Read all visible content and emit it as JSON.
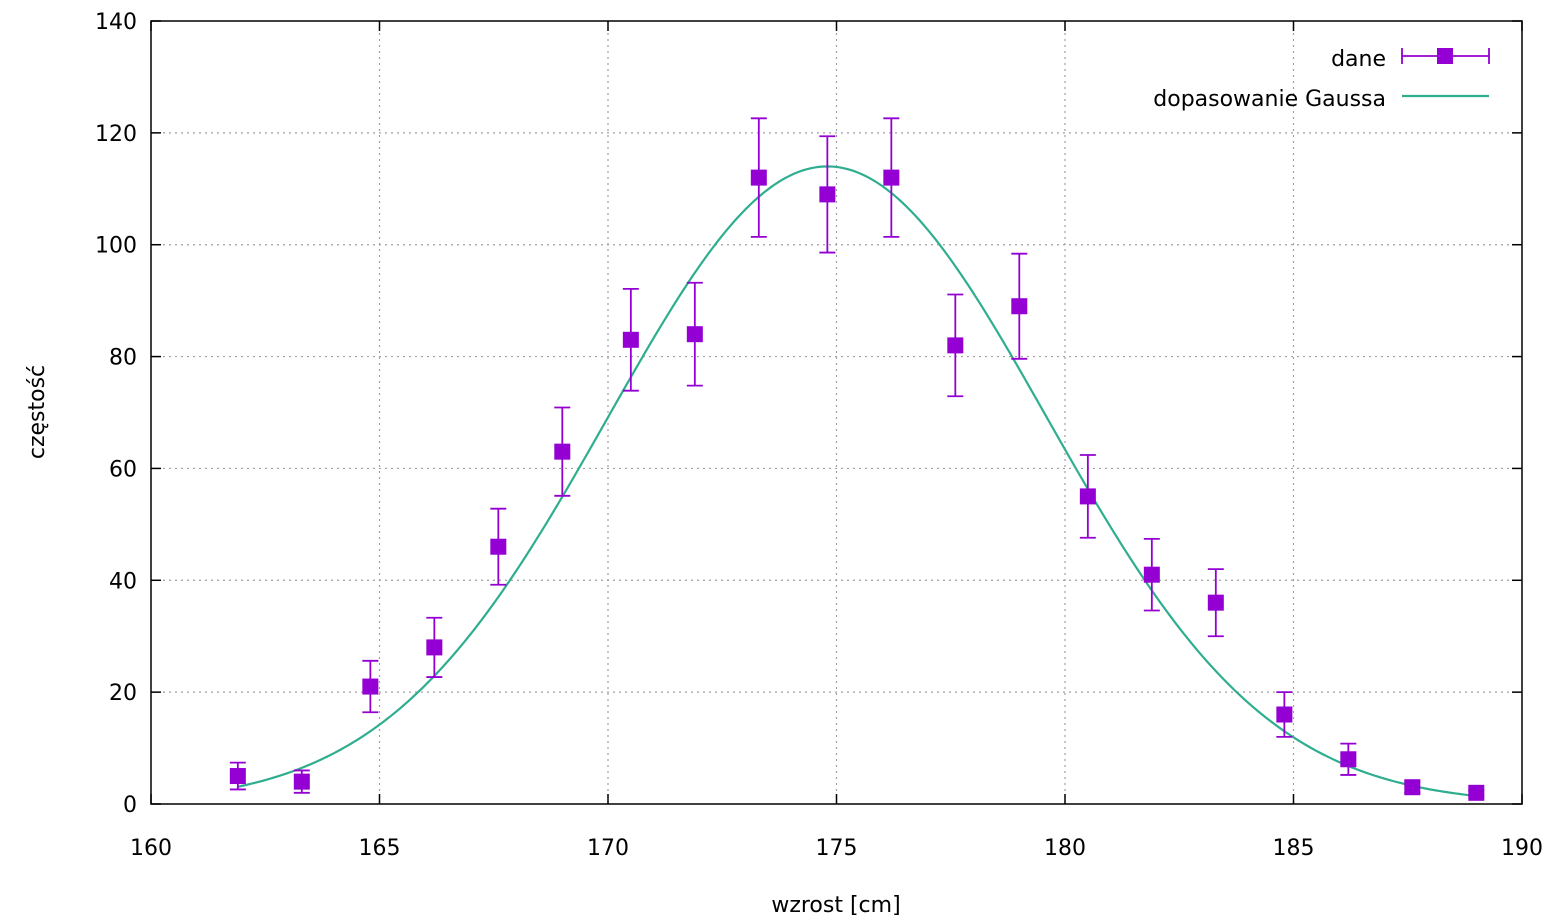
{
  "chart_data": {
    "type": "scatter",
    "xlabel": "wzrost [cm]",
    "ylabel": "częstość",
    "xlim": [
      160,
      190
    ],
    "ylim": [
      0,
      140
    ],
    "xticks": [
      160,
      165,
      170,
      175,
      180,
      185,
      190
    ],
    "yticks": [
      0,
      20,
      40,
      60,
      80,
      100,
      120,
      140
    ],
    "grid": true,
    "legend_position": "top-right",
    "series": [
      {
        "name": "dane",
        "kind": "points-with-errorbars",
        "color": "#9400d3",
        "x": [
          161.9,
          163.3,
          164.8,
          166.2,
          167.6,
          169.0,
          170.5,
          171.9,
          173.3,
          174.8,
          176.2,
          177.6,
          179.0,
          180.5,
          181.9,
          183.3,
          184.8,
          186.2,
          187.6,
          189.0
        ],
        "y": [
          5,
          4,
          21,
          28,
          46,
          63,
          83,
          84,
          112,
          109,
          112,
          82,
          89,
          55,
          41,
          36,
          16,
          8,
          3,
          2
        ],
        "err": [
          2.4,
          2.0,
          4.6,
          5.3,
          6.8,
          7.9,
          9.1,
          9.2,
          10.6,
          10.4,
          10.6,
          9.1,
          9.4,
          7.4,
          6.4,
          6.0,
          4.0,
          2.8,
          1.0,
          0.5
        ]
      },
      {
        "name": "dopasowanie Gaussa",
        "kind": "line",
        "color": "#2fae8f",
        "model": "gaussian",
        "amplitude": 114,
        "mean": 174.8,
        "sigma": 4.8
      }
    ]
  }
}
